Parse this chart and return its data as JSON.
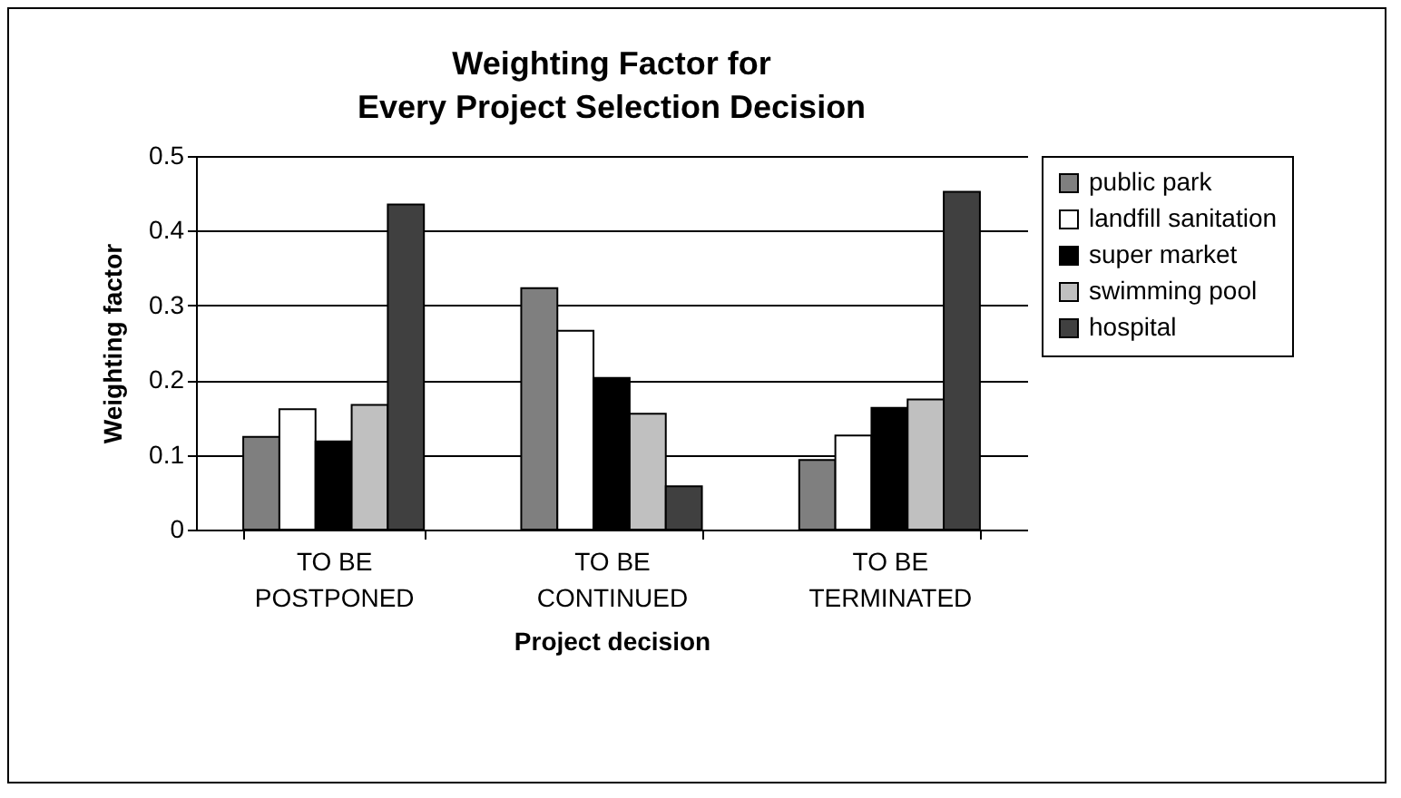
{
  "chart_data": {
    "type": "bar",
    "title": "Weighting Factor for\nEvery Project Selection Decision",
    "xlabel": "Project decision",
    "ylabel": "Weighting factor",
    "categories": [
      "TO BE\nPOSTPONED",
      "TO BE\nCONTINUED",
      "TO BE\nTERMINATED"
    ],
    "series": [
      {
        "name": "public park",
        "color": "#7f7f7f",
        "values": [
          0.124,
          0.323,
          0.093
        ]
      },
      {
        "name": "landfill sanitation",
        "color": "#ffffff",
        "values": [
          0.161,
          0.266,
          0.126
        ]
      },
      {
        "name": "super market",
        "color": "#000000",
        "values": [
          0.118,
          0.203,
          0.163
        ]
      },
      {
        "name": "swimming pool",
        "color": "#c0c0c0",
        "values": [
          0.167,
          0.155,
          0.174
        ]
      },
      {
        "name": "hospital",
        "color": "#404040",
        "values": [
          0.435,
          0.058,
          0.452
        ]
      }
    ],
    "ylim": [
      0,
      0.5
    ],
    "yticks": [
      0,
      0.1,
      0.2,
      0.3,
      0.4,
      0.5
    ],
    "grid": "y",
    "legend": "right"
  }
}
